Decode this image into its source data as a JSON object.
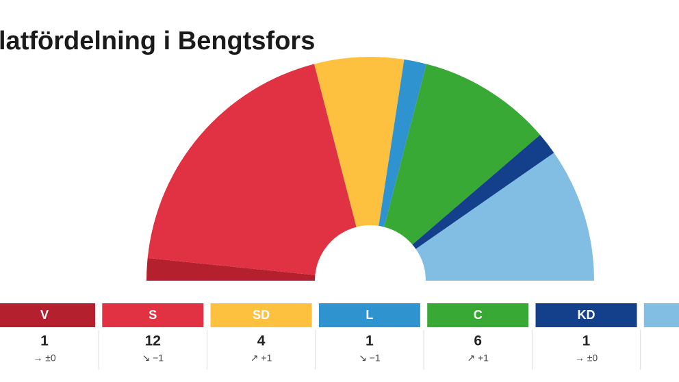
{
  "chart_data": {
    "type": "parliament",
    "title": "latfördelning i Bengtsfors",
    "categories": [
      "V",
      "S",
      "SD",
      "L",
      "C",
      "KD",
      null
    ],
    "values": [
      1,
      12,
      4,
      1,
      6,
      1,
      6
    ],
    "changes": [
      "→ ±0",
      "↘ −1",
      "↗ +1",
      "↘ −1",
      "↗ +1",
      "→ ±0",
      null
    ],
    "colors": [
      "#b5202e",
      "#e03242",
      "#fdc13f",
      "#2f93cf",
      "#39a935",
      "#143f8a",
      "#82bee3"
    ]
  }
}
